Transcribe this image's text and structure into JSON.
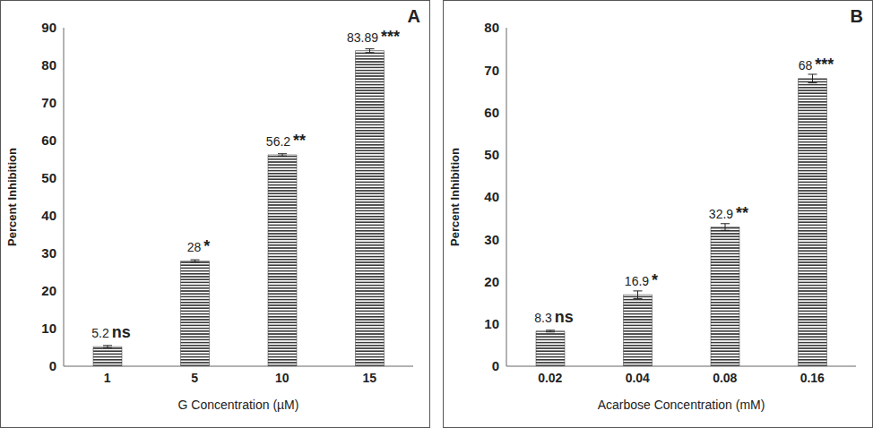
{
  "chart_data": [
    {
      "type": "bar",
      "panel_label": "A",
      "x_label": "G Concentration (µM)",
      "y_label": "Percent Inhibition",
      "categories": [
        "1",
        "5",
        "10",
        "15"
      ],
      "values": [
        5.2,
        28,
        56.2,
        83.89
      ],
      "error": [
        0.3,
        0.3,
        0.3,
        0.5
      ],
      "significance": [
        "ns",
        "*",
        "**",
        "***"
      ],
      "color": "#3a3a3a",
      "ylim": [
        0,
        90
      ],
      "yticks": [
        0,
        10,
        20,
        30,
        40,
        50,
        60,
        70,
        80,
        90
      ],
      "grid": false,
      "data_labels": true
    },
    {
      "type": "bar",
      "panel_label": "B",
      "x_label": "Acarbose Concentration (mM)",
      "y_label": "Percent Inhibition",
      "categories": [
        "0.02",
        "0.04",
        "0.08",
        "0.16"
      ],
      "values": [
        8.3,
        16.9,
        32.9,
        68
      ],
      "error": [
        0.2,
        0.9,
        0.8,
        1.0
      ],
      "significance": [
        "ns",
        "*",
        "**",
        "***"
      ],
      "color": "#3a3a3a",
      "ylim": [
        0,
        80
      ],
      "yticks": [
        0,
        10,
        20,
        30,
        40,
        50,
        60,
        70,
        80
      ],
      "grid": false,
      "data_labels": true
    }
  ]
}
